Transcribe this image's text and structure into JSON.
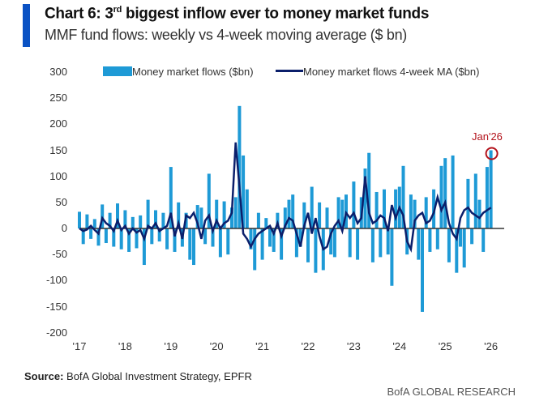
{
  "title_prefix": "Chart 6: 3",
  "title_sup": "rd",
  "title_rest": " biggest inflow ever to money market funds",
  "subtitle": "MMF fund flows: weekly vs 4-week moving average ($ bn)",
  "source_label": "Source:",
  "source_text": " BofA Global Investment Strategy, EPFR",
  "brand": "BofA GLOBAL RESEARCH",
  "chart_data": {
    "type": "bar+line",
    "ylim": [
      -200,
      300
    ],
    "yticks": [
      "300",
      "250",
      "200",
      "150",
      "100",
      "50",
      "0",
      "-50",
      "-100",
      "-150",
      "-200"
    ],
    "xticks": [
      "'17",
      "'18",
      "'19",
      "'20",
      "'21",
      "'22",
      "'23",
      "'24",
      "'25",
      "'26"
    ],
    "legend_placement": "top",
    "grid": false,
    "annotation": "Jan'26",
    "colors": {
      "flows": "#1e9ad6",
      "ma": "#0b1f6b",
      "annotation": "#b3121b"
    },
    "x_start": "2017-01",
    "x_step": "month",
    "series": [
      {
        "name": "Money market flows ($bn)",
        "type": "bar",
        "values": [
          32,
          -30,
          27,
          -20,
          18,
          -33,
          46,
          -28,
          30,
          -35,
          48,
          -40,
          35,
          -45,
          22,
          -38,
          25,
          -70,
          55,
          -30,
          35,
          -25,
          30,
          -40,
          118,
          -45,
          50,
          -35,
          30,
          -60,
          -70,
          45,
          40,
          -30,
          105,
          -35,
          55,
          -55,
          52,
          -50,
          40,
          60,
          235,
          140,
          75,
          -40,
          -80,
          30,
          -60,
          20,
          -35,
          -45,
          30,
          -60,
          40,
          55,
          65,
          -55,
          -35,
          50,
          -65,
          80,
          -85,
          50,
          -80,
          40,
          -50,
          -55,
          60,
          55,
          65,
          -55,
          90,
          -60,
          60,
          115,
          145,
          -65,
          70,
          -55,
          75,
          -50,
          -110,
          75,
          80,
          120,
          -50,
          65,
          55,
          -60,
          -160,
          60,
          -45,
          75,
          -40,
          120,
          135,
          -65,
          140,
          -85,
          -35,
          -75,
          95,
          -30,
          105,
          55,
          -45,
          118,
          150
        ]
      },
      {
        "name": "Money market flows 4-week MA ($bn)",
        "type": "line",
        "values": [
          0,
          -5,
          -2,
          5,
          -3,
          -10,
          20,
          10,
          5,
          -5,
          15,
          -3,
          5,
          -10,
          0,
          -8,
          -3,
          -20,
          5,
          0,
          10,
          -5,
          0,
          5,
          30,
          -15,
          10,
          -20,
          25,
          20,
          30,
          10,
          -20,
          15,
          25,
          -5,
          15,
          0,
          10,
          15,
          30,
          165,
          80,
          -10,
          -20,
          -35,
          -20,
          -10,
          -5,
          0,
          5,
          -10,
          10,
          -15,
          5,
          20,
          15,
          -10,
          -35,
          5,
          30,
          -10,
          20,
          -15,
          -40,
          -35,
          -10,
          5,
          15,
          -5,
          30,
          20,
          30,
          10,
          20,
          100,
          30,
          10,
          15,
          25,
          20,
          -5,
          45,
          20,
          40,
          25,
          -25,
          -40,
          15,
          25,
          30,
          10,
          15,
          30,
          60,
          35,
          50,
          10,
          -10,
          -20,
          20,
          35,
          40,
          30,
          25,
          20,
          30,
          35,
          40
        ]
      }
    ]
  }
}
